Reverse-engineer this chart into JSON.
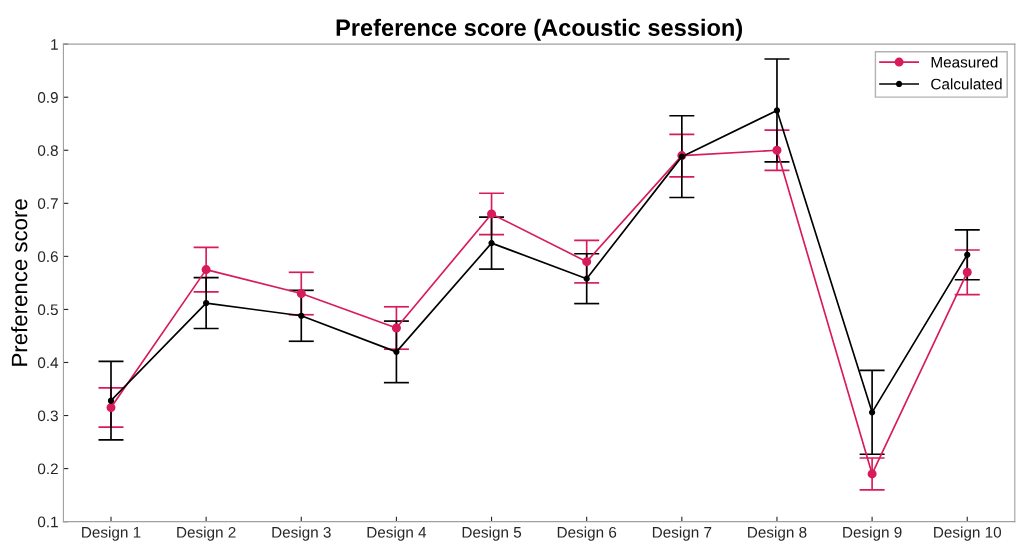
{
  "chart_data": {
    "type": "line",
    "title": "Preference score (Acoustic session)",
    "ylabel": "Preference score",
    "categories": [
      "Design 1",
      "Design 2",
      "Design 3",
      "Design 4",
      "Design 5",
      "Design 6",
      "Design 7",
      "Design 8",
      "Design 9",
      "Design 10"
    ],
    "series": [
      {
        "name": "Measured",
        "color": "#d81b5a",
        "values": [
          0.315,
          0.575,
          0.53,
          0.465,
          0.68,
          0.59,
          0.79,
          0.8,
          0.19,
          0.57
        ],
        "errors": [
          0.037,
          0.042,
          0.04,
          0.04,
          0.039,
          0.04,
          0.04,
          0.038,
          0.03,
          0.042
        ]
      },
      {
        "name": "Calculated",
        "color": "#000000",
        "values": [
          0.328,
          0.512,
          0.488,
          0.42,
          0.625,
          0.558,
          0.788,
          0.875,
          0.306,
          0.603
        ],
        "errors": [
          0.074,
          0.048,
          0.048,
          0.058,
          0.049,
          0.047,
          0.077,
          0.097,
          0.079,
          0.047
        ]
      }
    ],
    "ylim": [
      0.1,
      1
    ],
    "yticks": [
      0.1,
      0.2,
      0.3,
      0.4,
      0.5,
      0.6,
      0.7,
      0.8,
      0.9,
      1
    ],
    "grid": false,
    "legend": "top right",
    "marker": "circle",
    "line_style": "solid"
  }
}
